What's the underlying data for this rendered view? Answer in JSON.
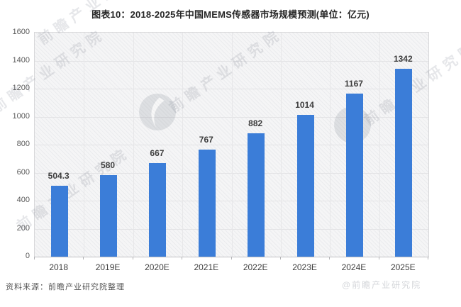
{
  "title": "图表10：2018-2025年中国MEMS传感器市场规模预测(单位：亿元)",
  "source_note": "资料来源：前瞻产业研究院整理",
  "watermark": {
    "text": "前瞻产业研究院",
    "footer_text": "@前瞻产业研究院",
    "logo_name": "qianzhan-logo"
  },
  "colors": {
    "bar": "#3b7dd8",
    "plot_background": "#f5f5f6",
    "gridline": "#e3e3e5",
    "axis_line": "#bfbfc2",
    "title_text": "#262626",
    "tick_text": "#595959",
    "value_label_text": "#3d3d3d"
  },
  "chart_data": {
    "type": "bar",
    "categories": [
      "2018",
      "2019E",
      "2020E",
      "2021E",
      "2022E",
      "2023E",
      "2024E",
      "2025E"
    ],
    "values": [
      504.3,
      580,
      667,
      767,
      882,
      1014,
      1167,
      1342
    ],
    "value_labels": [
      "504.3",
      "580",
      "667",
      "767",
      "882",
      "1014",
      "1167",
      "1342"
    ],
    "title": "图表10：2018-2025年中国MEMS传感器市场规模预测(单位：亿元)",
    "xlabel": "",
    "ylabel": "",
    "ylim": [
      0,
      1600
    ],
    "ytick_step": 200,
    "grid": true,
    "legend": false
  }
}
